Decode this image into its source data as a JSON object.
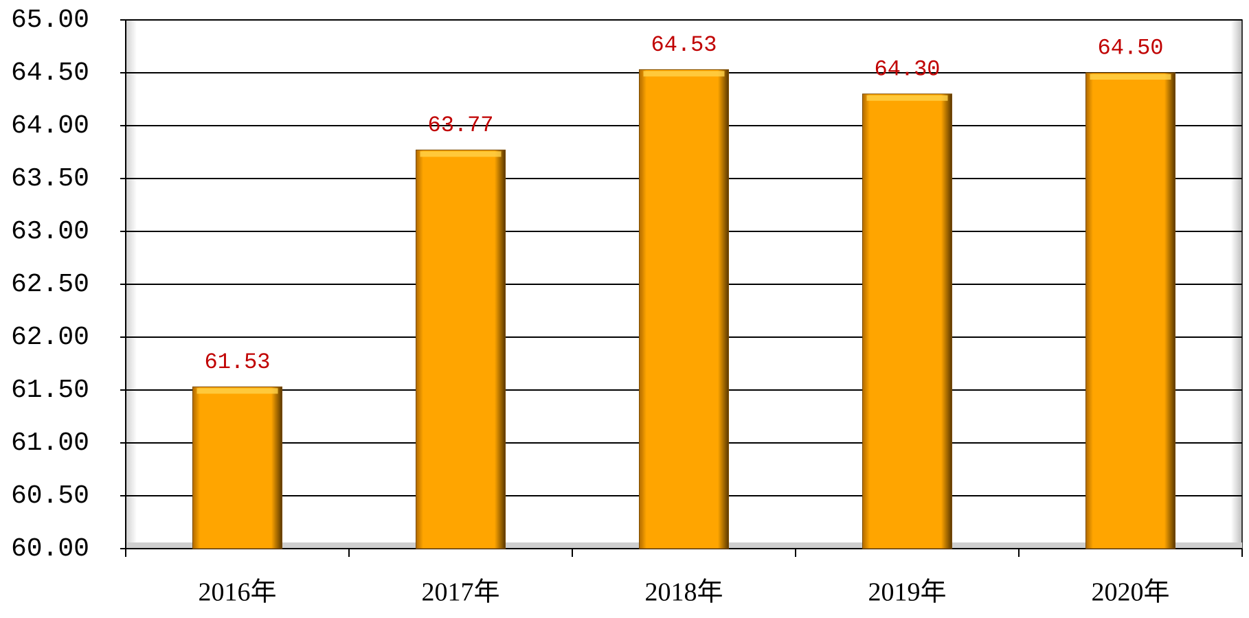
{
  "chart_data": {
    "type": "bar",
    "categories": [
      "2016年",
      "2017年",
      "2018年",
      "2019年",
      "2020年"
    ],
    "values": [
      61.53,
      63.77,
      64.53,
      64.3,
      64.5
    ],
    "value_labels": [
      "61.53",
      "63.77",
      "64.53",
      "64.30",
      "64.50"
    ],
    "color": "#ffa200",
    "ylim": [
      60,
      65
    ],
    "yticks": [
      {
        "value": 60,
        "label": "60.00"
      },
      {
        "value": 60.5,
        "label": "60.50"
      },
      {
        "value": 61,
        "label": "61.00"
      },
      {
        "value": 61.5,
        "label": "61.50"
      },
      {
        "value": 62,
        "label": "62.00"
      },
      {
        "value": 62.5,
        "label": "62.50"
      },
      {
        "value": 63,
        "label": "63.00"
      },
      {
        "value": 63.5,
        "label": "63.50"
      },
      {
        "value": 64,
        "label": "64.00"
      },
      {
        "value": 64.5,
        "label": "64.50"
      },
      {
        "value": 65,
        "label": "65.00"
      }
    ],
    "grid": true
  }
}
